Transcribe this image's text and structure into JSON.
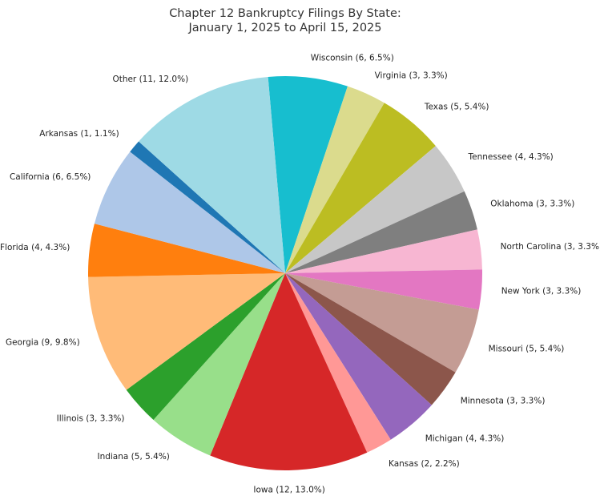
{
  "chart_data": {
    "type": "pie",
    "title": [
      "Chapter 12 Bankruptcy Filings By State:",
      "January 1, 2025 to April 15, 2025"
    ],
    "start_angle_deg": 95,
    "direction": "clockwise",
    "slices": [
      {
        "label": "Wisconsin (6, 6.5%)",
        "value": 6,
        "percent": 6.5,
        "color": "#17becf"
      },
      {
        "label": "Virginia (3, 3.3%)",
        "value": 3,
        "percent": 3.3,
        "color": "#dbdb8d"
      },
      {
        "label": "Texas (5, 5.4%)",
        "value": 5,
        "percent": 5.4,
        "color": "#bcbd22"
      },
      {
        "label": "Tennessee (4, 4.3%)",
        "value": 4,
        "percent": 4.3,
        "color": "#c7c7c7"
      },
      {
        "label": "Oklahoma (3, 3.3%)",
        "value": 3,
        "percent": 3.3,
        "color": "#7f7f7f"
      },
      {
        "label": "North Carolina (3, 3.3%)",
        "value": 3,
        "percent": 3.3,
        "color": "#f7b6d2"
      },
      {
        "label": "New York (3, 3.3%)",
        "value": 3,
        "percent": 3.3,
        "color": "#e377c2"
      },
      {
        "label": "Missouri (5, 5.4%)",
        "value": 5,
        "percent": 5.4,
        "color": "#c49c94"
      },
      {
        "label": "Minnesota (3, 3.3%)",
        "value": 3,
        "percent": 3.3,
        "color": "#8c564b"
      },
      {
        "label": "Michigan (4, 4.3%)",
        "value": 4,
        "percent": 4.3,
        "color": "#9467bd"
      },
      {
        "label": "Kansas (2, 2.2%)",
        "value": 2,
        "percent": 2.2,
        "color": "#ff9896"
      },
      {
        "label": "Iowa (12, 13.0%)",
        "value": 12,
        "percent": 13.0,
        "color": "#d62728"
      },
      {
        "label": "Indiana (5, 5.4%)",
        "value": 5,
        "percent": 5.4,
        "color": "#98df8a"
      },
      {
        "label": "Illinois (3, 3.3%)",
        "value": 3,
        "percent": 3.3,
        "color": "#2ca02c"
      },
      {
        "label": "Georgia (9, 9.8%)",
        "value": 9,
        "percent": 9.8,
        "color": "#ffbb78"
      },
      {
        "label": "Florida (4, 4.3%)",
        "value": 4,
        "percent": 4.3,
        "color": "#ff7f0e"
      },
      {
        "label": "California (6, 6.5%)",
        "value": 6,
        "percent": 6.5,
        "color": "#aec7e8"
      },
      {
        "label": "Arkansas (1, 1.1%)",
        "value": 1,
        "percent": 1.1,
        "color": "#1f77b4"
      },
      {
        "label": "Other (11, 12.0%)",
        "value": 11,
        "percent": 12.0,
        "color": "#9edae5"
      }
    ]
  }
}
